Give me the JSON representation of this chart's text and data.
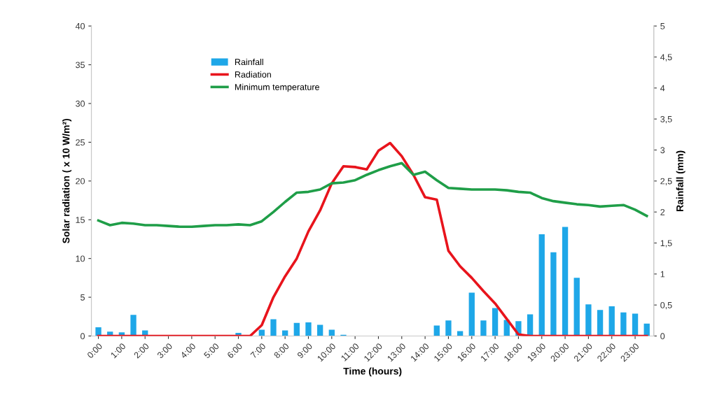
{
  "chart_data": {
    "type": "line",
    "xlabel": "Time (hours)",
    "ylabel": "Solar radiation ( x 10 W/m²)",
    "y2label": "Rainfall (mm)",
    "categories": [
      "0:00",
      null,
      "1:00",
      null,
      "2:00",
      null,
      "3:00",
      null,
      "4:00",
      null,
      "5:00",
      null,
      "6:00",
      null,
      "7:00",
      null,
      "8:00",
      null,
      "9:00",
      null,
      "10:00",
      null,
      "11:00",
      null,
      "12:00",
      null,
      "13:00",
      null,
      "14:00",
      null,
      "15:00",
      null,
      "16:00",
      null,
      "17:00",
      null,
      "18:00",
      null,
      "19:00",
      null,
      "20:00",
      null,
      "21:00",
      null,
      "22:00",
      null,
      "23:00",
      null
    ],
    "series": [
      {
        "name": "Rainfall",
        "type": "bar",
        "axis": "y2",
        "color": "#1ea7e8",
        "values": [
          0.14,
          0.07,
          0.06,
          0.34,
          0.09,
          0,
          0,
          0,
          0,
          0,
          0,
          0,
          0.05,
          0,
          0.1,
          0.27,
          0.09,
          0.21,
          0.22,
          0.18,
          0.1,
          0.02,
          0,
          0,
          0,
          0,
          0,
          0,
          0,
          0.17,
          0.25,
          0.08,
          0.7,
          0.25,
          0.45,
          0.26,
          0.24,
          0.35,
          1.64,
          1.35,
          1.76,
          0.94,
          0.51,
          0.42,
          0.48,
          0.38,
          0.36,
          0.2
        ]
      },
      {
        "name": "Radiation",
        "color": "#e8141c",
        "values": [
          0,
          0,
          0,
          0,
          0,
          0,
          0,
          0,
          0,
          0,
          0,
          0,
          0,
          0,
          1.4,
          5,
          7.7,
          10,
          13.5,
          16.2,
          19.7,
          21.9,
          21.8,
          21.5,
          23.9,
          24.9,
          23.2,
          20.8,
          17.9,
          17.6,
          11,
          9,
          7.5,
          5.8,
          4.2,
          2.2,
          0.2,
          0,
          0,
          0,
          0,
          0,
          0,
          0,
          0,
          0,
          0,
          0
        ]
      },
      {
        "name": "Minimum temperature",
        "color": "#1f9e48",
        "values": [
          14.9,
          14.3,
          14.6,
          14.5,
          14.3,
          14.3,
          14.2,
          14.1,
          14.1,
          14.2,
          14.3,
          14.3,
          14.4,
          14.3,
          14.8,
          16.0,
          17.3,
          18.5,
          18.6,
          18.9,
          19.7,
          19.8,
          20.1,
          20.8,
          21.4,
          21.9,
          22.3,
          20.8,
          21.2,
          20.1,
          19.1,
          19.0,
          18.9,
          18.9,
          18.9,
          18.8,
          18.6,
          18.5,
          17.8,
          17.4,
          17.2,
          17.0,
          16.9,
          16.7,
          16.8,
          16.9,
          16.3,
          15.5
        ]
      }
    ],
    "ylim": [
      0,
      40
    ],
    "yticks": [
      0,
      5,
      10,
      15,
      20,
      25,
      30,
      35,
      40
    ],
    "y2lim": [
      0,
      5
    ],
    "y2ticks": [
      0,
      {
        "value": 0.5,
        "label": "0,5"
      },
      1,
      {
        "value": 1.5,
        "label": "1,5"
      },
      2,
      {
        "value": 2.5,
        "label": "2,5"
      },
      3,
      {
        "value": 3.5,
        "label": "3,5"
      },
      4,
      {
        "value": 4.5,
        "label": "4,5"
      },
      5
    ],
    "legend": "top left"
  }
}
